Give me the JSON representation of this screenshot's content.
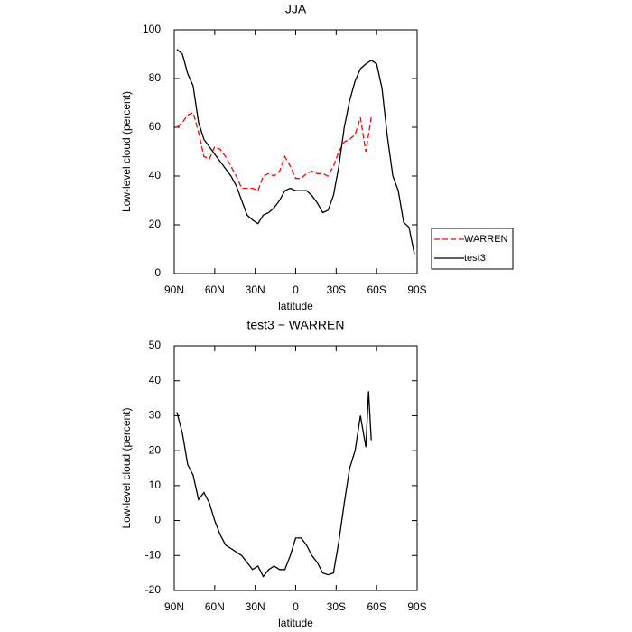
{
  "chart_data": [
    {
      "type": "line",
      "title": "JJA",
      "xlabel": "latitude",
      "ylabel": "Low-level cloud (percent)",
      "x": [
        88,
        84,
        80,
        76,
        72,
        68,
        64,
        60,
        56,
        52,
        48,
        44,
        40,
        36,
        32,
        28,
        24,
        20,
        16,
        12,
        8,
        4,
        0,
        -4,
        -8,
        -12,
        -16,
        -20,
        -24,
        -28,
        -32,
        -36,
        -40,
        -44,
        -48,
        -52,
        -56,
        -60,
        -64,
        -68,
        -72,
        -76,
        -80,
        -84,
        -88
      ],
      "series": [
        {
          "name": "WARREN",
          "color": "#ff0000",
          "linestyle": "dashed",
          "values": [
            60,
            62,
            65,
            66,
            58,
            48,
            47,
            52,
            51,
            48,
            44,
            40,
            35,
            35,
            35,
            34,
            40,
            41,
            40,
            42,
            48,
            44,
            39,
            39,
            41,
            42,
            41,
            41,
            40,
            44,
            50,
            54,
            55,
            57,
            64,
            50,
            64,
            null,
            null,
            null,
            null,
            null,
            null,
            null,
            null
          ]
        },
        {
          "name": "test3",
          "color": "#000000",
          "linestyle": "solid",
          "values": [
            92,
            90,
            82,
            77,
            62,
            55,
            52,
            49,
            46,
            43,
            40,
            36,
            30,
            24,
            22,
            20.5,
            24,
            25,
            27,
            30,
            34,
            35,
            34,
            34,
            34,
            32,
            29,
            25,
            26,
            32,
            44,
            60,
            71,
            79,
            84,
            86,
            87.5,
            86,
            76,
            56,
            40,
            34,
            21,
            19,
            8
          ]
        }
      ],
      "xlim": [
        90,
        -90
      ],
      "xticks": [
        {
          "value": 90,
          "label": "90N"
        },
        {
          "value": 60,
          "label": "60N"
        },
        {
          "value": 30,
          "label": "30N"
        },
        0,
        {
          "value": -30,
          "label": "30S"
        },
        {
          "value": -60,
          "label": "60S"
        },
        {
          "value": -90,
          "label": "90S"
        }
      ],
      "ylim": [
        0,
        100
      ],
      "yticks": [
        0,
        20,
        40,
        60,
        80,
        100
      ],
      "legend": "right"
    },
    {
      "type": "line",
      "title": "test3 − WARREN",
      "xlabel": "latitude",
      "ylabel": "Low-level cloud (percent)",
      "x": [
        88,
        84,
        80,
        76,
        72,
        68,
        64,
        60,
        56,
        52,
        48,
        44,
        40,
        36,
        32,
        28,
        24,
        20,
        16,
        12,
        8,
        4,
        0,
        -4,
        -8,
        -12,
        -16,
        -20,
        -24,
        -28,
        -32,
        -36,
        -40,
        -44,
        -48,
        -52,
        -54,
        -56
      ],
      "series": [
        {
          "color": "#000000",
          "linestyle": "solid",
          "values": [
            31,
            25,
            16,
            13,
            6,
            8,
            5,
            0,
            -4,
            -7,
            -8,
            -9,
            -10,
            -12,
            -14,
            -13,
            -16,
            -14,
            -13,
            -14,
            -14,
            -10,
            -5,
            -5,
            -7,
            -10,
            -12,
            -15,
            -15.5,
            -15,
            -6,
            5,
            15,
            20,
            30,
            21,
            37,
            23
          ]
        }
      ],
      "xlim": [
        90,
        -90
      ],
      "xticks": [
        {
          "value": 90,
          "label": "90N"
        },
        {
          "value": 60,
          "label": "60N"
        },
        {
          "value": 30,
          "label": "30N"
        },
        0,
        {
          "value": -30,
          "label": "30S"
        },
        {
          "value": -60,
          "label": "60S"
        },
        {
          "value": -90,
          "label": "90S"
        }
      ],
      "ylim": [
        -20,
        50
      ],
      "yticks": [
        -20,
        -10,
        0,
        10,
        20,
        30,
        40,
        50
      ]
    }
  ]
}
